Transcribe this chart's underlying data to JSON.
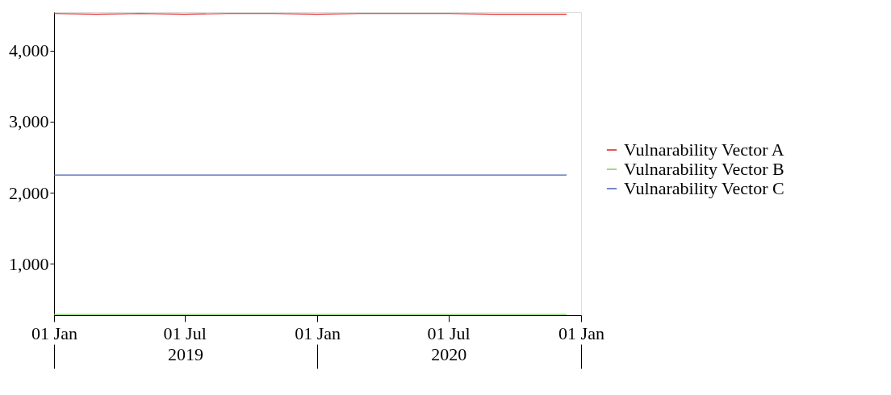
{
  "chart_data": {
    "type": "line",
    "xlim": [
      "2019-01-01",
      "2021-01-01"
    ],
    "xticks": [
      {
        "value": "2019-01-01",
        "label": "01 Jan"
      },
      {
        "value": "2019-07-01",
        "label": "01 Jul"
      },
      {
        "value": "2020-01-01",
        "label": "01 Jan"
      },
      {
        "value": "2020-07-01",
        "label": "01 Jul"
      },
      {
        "value": "2021-01-01",
        "label": "01 Jan"
      }
    ],
    "x2lim": [
      "2019-01-01",
      "2021-01-01"
    ],
    "x2ticks": [
      {
        "value": "2019-01-01",
        "label": null
      },
      {
        "value": "2019-07-02",
        "label": "2019"
      },
      {
        "value": "2020-01-01",
        "label": null
      },
      {
        "value": "2020-07-01",
        "label": "2020"
      },
      {
        "value": "2021-01-01",
        "label": null
      }
    ],
    "ylim": [
      280,
      4540
    ],
    "yticks": [
      {
        "value": 1000,
        "label": "1,000"
      },
      {
        "value": 2000,
        "label": "2,000"
      },
      {
        "value": 3000,
        "label": "3,000"
      },
      {
        "value": 4000,
        "label": "4,000"
      }
    ],
    "grid": false,
    "legend": "right",
    "line_style": "solid",
    "marker": "none",
    "series": [
      {
        "name": "Vulnarability Vector A",
        "color": "#e31a1c",
        "x": [
          "2019-01-01",
          "2019-03-01",
          "2019-05-01",
          "2019-07-01",
          "2019-09-01",
          "2019-11-01",
          "2020-01-01",
          "2020-03-01",
          "2020-05-01",
          "2020-07-01",
          "2020-09-01",
          "2020-11-01",
          "2020-12-12"
        ],
        "values": [
          4520,
          4510,
          4520,
          4510,
          4520,
          4520,
          4510,
          4520,
          4520,
          4520,
          4510,
          4510,
          4510
        ]
      },
      {
        "name": "Vulnarability Vector B",
        "color": "#7fcc5a",
        "x": [
          "2019-01-01",
          "2020-12-12"
        ],
        "values": [
          290,
          290
        ]
      },
      {
        "name": "Vulnarability Vector C",
        "color": "#4a5fb0",
        "x": [
          "2019-01-01",
          "2020-12-12"
        ],
        "values": [
          2250,
          2250
        ]
      }
    ]
  }
}
